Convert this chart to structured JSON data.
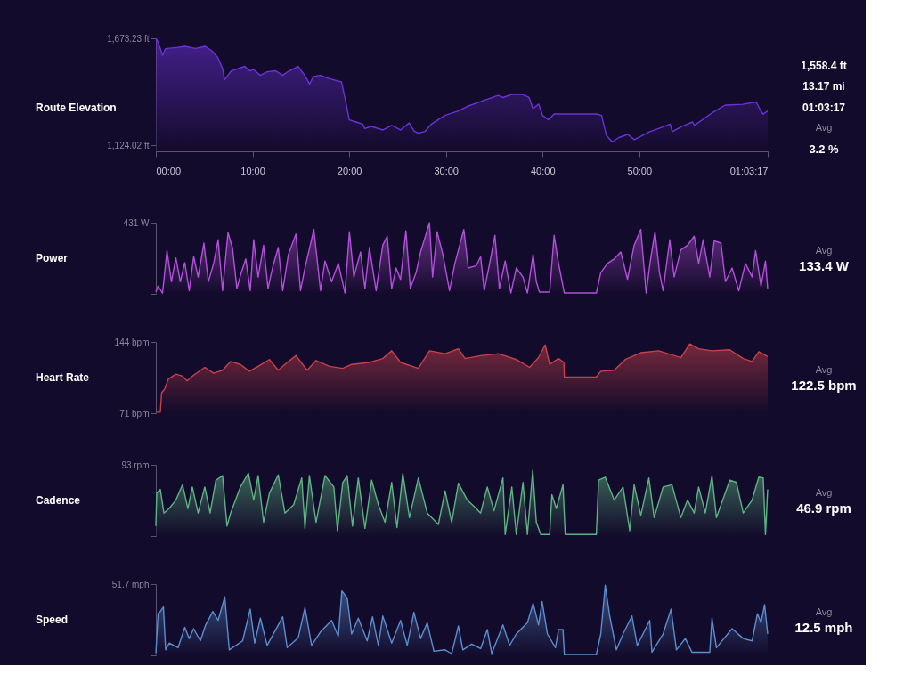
{
  "chart_data": [
    {
      "type": "area",
      "ylabel": "Route Elevation",
      "color": "#6c31d9",
      "xlim": [
        0,
        63.283
      ],
      "ylim": [
        1092,
        1673.23
      ],
      "xticks": [
        {
          "value": 0,
          "label": "00:00"
        },
        {
          "value": 10,
          "label": "10:00"
        },
        {
          "value": 20,
          "label": "20:00"
        },
        {
          "value": 30,
          "label": "30:00"
        },
        {
          "value": 40,
          "label": "40:00"
        },
        {
          "value": 50,
          "label": "50:00"
        },
        {
          "value": 63.283,
          "label": "01:03:17"
        }
      ],
      "yticks": [
        {
          "value": 1673.23,
          "label": "1,673.23 ft"
        },
        {
          "value": 1124.02,
          "label": "1,124.02 ft"
        }
      ],
      "x": [
        0,
        0.23,
        0.69,
        1.0,
        2.3,
        3.0,
        4.1,
        5.1,
        5.8,
        6.4,
        6.9,
        7.1,
        7.8,
        9.2,
        9.7,
        10.1,
        10.8,
        11.5,
        12.4,
        13.1,
        13.8,
        14.7,
        15.4,
        15.9,
        16.3,
        17.0,
        17.9,
        18.9,
        19.2,
        19.6,
        20.0,
        20.7,
        21.4,
        21.6,
        22.3,
        23.5,
        24.4,
        25.3,
        26.2,
        26.7,
        27.1,
        27.8,
        28.5,
        29.9,
        31.3,
        32.2,
        34.1,
        35.4,
        35.9,
        36.8,
        37.9,
        38.6,
        39.0,
        39.6,
        40.0,
        40.6,
        41.2,
        42.8,
        45.6,
        46.1,
        46.6,
        47.2,
        47.9,
        48.8,
        49.5,
        50.2,
        51.1,
        52.0,
        53.2,
        53.4,
        54.4,
        55.5,
        55.7,
        57.5,
        58.9,
        60.7,
        62.1,
        62.4,
        62.8,
        63.283
      ],
      "values": [
        1673,
        1655,
        1586,
        1620,
        1627,
        1632,
        1621,
        1632,
        1609,
        1575,
        1518,
        1460,
        1506,
        1529,
        1506,
        1513,
        1483,
        1501,
        1506,
        1483,
        1506,
        1529,
        1483,
        1438,
        1477,
        1483,
        1467,
        1453,
        1449,
        1357,
        1254,
        1243,
        1232,
        1209,
        1220,
        1202,
        1225,
        1202,
        1238,
        1197,
        1186,
        1193,
        1232,
        1277,
        1300,
        1323,
        1357,
        1380,
        1369,
        1385,
        1385,
        1369,
        1312,
        1335,
        1277,
        1254,
        1284,
        1284,
        1284,
        1277,
        1174,
        1140,
        1163,
        1179,
        1152,
        1170,
        1193,
        1209,
        1232,
        1193,
        1220,
        1243,
        1225,
        1289,
        1330,
        1334,
        1346,
        1316,
        1284,
        1300
      ],
      "annotations": [
        "1,558.4 ft",
        "13.17 mi",
        "01:03:17",
        "Avg",
        "3.2 %"
      ]
    },
    {
      "type": "area",
      "ylabel": "Power",
      "color": "#b44fdc",
      "xlim": [
        0,
        63.283
      ],
      "ylim": [
        0,
        431
      ],
      "tick_labels": "y",
      "yticks": [
        {
          "value": 431,
          "label": "431 W"
        },
        {
          "value": 0,
          "label": null
        }
      ],
      "x": [
        0,
        0.23,
        0.69,
        1.15,
        1.61,
        2.07,
        2.53,
        2.99,
        3.45,
        3.91,
        4.37,
        4.97,
        5.43,
        5.98,
        6.44,
        6.9,
        7.46,
        7.92,
        8.38,
        8.84,
        9.3,
        9.76,
        10.12,
        10.58,
        11.14,
        11.6,
        12.06,
        12.66,
        13.12,
        13.71,
        14.49,
        14.96,
        15.42,
        16.34,
        17.03,
        17.49,
        18.18,
        18.87,
        19.56,
        20.02,
        20.48,
        21.17,
        21.63,
        22.09,
        22.78,
        23.47,
        23.93,
        24.39,
        24.85,
        25.31,
        25.86,
        26.32,
        26.92,
        27.38,
        28.3,
        28.62,
        29.08,
        29.68,
        30.37,
        30.93,
        31.85,
        32.31,
        33.13,
        33.59,
        33.96,
        34.52,
        35.07,
        35.53,
        36.13,
        36.72,
        37.28,
        37.97,
        38.43,
        39.02,
        39.35,
        39.67,
        40.73,
        41.19,
        41.65,
        42.25,
        45.56,
        46.02,
        46.71,
        47.4,
        48.09,
        48.78,
        49.47,
        50.16,
        50.71,
        51.17,
        51.63,
        52.09,
        52.46,
        53.15,
        53.61,
        54.3,
        54.99,
        55.68,
        56.14,
        56.6,
        57.29,
        57.75,
        58.45,
        58.91,
        59.6,
        60.29,
        60.98,
        61.67,
        62.03,
        62.59,
        63.05,
        63.28
      ],
      "values": [
        11,
        47,
        5,
        261,
        74,
        217,
        74,
        189,
        19,
        225,
        102,
        307,
        74,
        184,
        327,
        19,
        371,
        280,
        33,
        129,
        211,
        19,
        327,
        102,
        294,
        33,
        156,
        280,
        19,
        239,
        362,
        19,
        156,
        390,
        19,
        198,
        74,
        184,
        5,
        376,
        102,
        253,
        33,
        280,
        19,
        294,
        349,
        33,
        156,
        88,
        382,
        33,
        129,
        253,
        431,
        102,
        376,
        239,
        19,
        184,
        390,
        156,
        170,
        225,
        19,
        184,
        354,
        33,
        198,
        5,
        156,
        102,
        5,
        239,
        74,
        11,
        11,
        354,
        184,
        5,
        5,
        129,
        184,
        211,
        253,
        88,
        294,
        390,
        5,
        211,
        376,
        129,
        19,
        327,
        102,
        266,
        294,
        349,
        184,
        327,
        102,
        321,
        307,
        74,
        156,
        19,
        184,
        102,
        261,
        47,
        198,
        33
      ],
      "annotations": [
        "Avg",
        "133.4 W"
      ]
    },
    {
      "type": "area",
      "ylabel": "Heart Rate",
      "color": "#c9404b",
      "xlim": [
        0,
        63.283
      ],
      "ylim": [
        71,
        144
      ],
      "tick_labels": "y",
      "yticks": [
        {
          "value": 144,
          "label": "144 bpm"
        },
        {
          "value": 71,
          "label": "71 bpm"
        }
      ],
      "x": [
        0,
        0.46,
        0.6,
        0.92,
        1.29,
        2.07,
        2.76,
        3.22,
        3.91,
        5.06,
        5.98,
        6.9,
        7.73,
        8.74,
        9.67,
        10.58,
        11.74,
        12.66,
        13.58,
        14.49,
        15.65,
        16.57,
        17.95,
        19.33,
        20.25,
        22.09,
        23.47,
        24.39,
        25.31,
        27.15,
        28.3,
        29.91,
        31.29,
        31.98,
        33.59,
        35.44,
        37.28,
        38.66,
        39.58,
        40.27,
        40.73,
        41.65,
        42.2,
        42.25,
        45.56,
        46.02,
        47.4,
        48.55,
        50.16,
        52.0,
        54.3,
        55.22,
        56.14,
        57.52,
        59.36,
        60.75,
        61.67,
        62.36,
        63.28
      ],
      "values": [
        72,
        72,
        92,
        96,
        106,
        111,
        109,
        104,
        110,
        118,
        112,
        115,
        124,
        121,
        114,
        119,
        126,
        115,
        123,
        130,
        115,
        125,
        119,
        117,
        121,
        123,
        127,
        135,
        123,
        117,
        135,
        132,
        137,
        127,
        130,
        132,
        126,
        118,
        128,
        141,
        121,
        127,
        123,
        108,
        108,
        114,
        115,
        126,
        133,
        135,
        128,
        142,
        137,
        135,
        136,
        127,
        124,
        134,
        129
      ],
      "annotations": [
        "Avg",
        "122.5 bpm"
      ]
    },
    {
      "type": "area",
      "ylabel": "Cadence",
      "color": "#5cb482",
      "xlim": [
        0,
        63.283
      ],
      "ylim": [
        0,
        93
      ],
      "tick_labels": "y",
      "yticks": [
        {
          "value": 93,
          "label": "93 rpm"
        },
        {
          "value": 0,
          "label": null
        }
      ],
      "x": [
        0,
        0.09,
        0.46,
        0.83,
        1.38,
        2.07,
        2.76,
        3.31,
        3.77,
        4.37,
        5.06,
        5.61,
        6.21,
        6.9,
        7.36,
        7.73,
        8.74,
        9.57,
        10.12,
        10.58,
        11.14,
        11.74,
        12.66,
        13.35,
        14.26,
        15.09,
        15.42,
        15.88,
        16.57,
        17.49,
        18.41,
        18.78,
        19.33,
        19.79,
        20.34,
        20.94,
        21.63,
        22.32,
        23.01,
        23.7,
        24.39,
        24.94,
        25.54,
        26.23,
        27.15,
        28.07,
        29.22,
        29.91,
        30.6,
        31.29,
        32.21,
        33.13,
        33.59,
        34.28,
        34.97,
        35.9,
        36.13,
        36.82,
        37.28,
        37.97,
        38.43,
        38.98,
        39.35,
        39.67,
        39.81,
        40.73,
        40.96,
        41.42,
        42.11,
        42.34,
        45.56,
        45.79,
        46.48,
        47.4,
        48.32,
        49.01,
        49.47,
        50.16,
        50.99,
        51.54,
        52.46,
        53.38,
        54.3,
        54.99,
        55.68,
        56.14,
        56.83,
        57.52,
        57.98,
        59.36,
        60.05,
        60.75,
        61.67,
        62.36,
        62.82,
        63.05,
        63.28
      ],
      "values": [
        13,
        56,
        61,
        30,
        36,
        47,
        67,
        36,
        64,
        30,
        64,
        30,
        73,
        79,
        13,
        30,
        64,
        82,
        47,
        79,
        18,
        56,
        80,
        30,
        41,
        76,
        10,
        79,
        18,
        79,
        64,
        7,
        70,
        79,
        13,
        76,
        10,
        73,
        41,
        18,
        70,
        11,
        82,
        24,
        76,
        30,
        15,
        59,
        18,
        69,
        47,
        36,
        30,
        64,
        33,
        76,
        2,
        64,
        2,
        70,
        2,
        86,
        18,
        7,
        2,
        2,
        54,
        36,
        67,
        2,
        2,
        73,
        77,
        47,
        64,
        7,
        67,
        27,
        76,
        24,
        64,
        67,
        24,
        47,
        30,
        64,
        30,
        79,
        24,
        73,
        70,
        30,
        47,
        77,
        76,
        2,
        61
      ],
      "annotations": [
        "Avg",
        "46.9 rpm"
      ]
    },
    {
      "type": "area",
      "ylabel": "Speed",
      "color": "#5b8ed0",
      "xlim": [
        0,
        63.283
      ],
      "ylim": [
        0,
        51.7
      ],
      "tick_labels": "y",
      "yticks": [
        {
          "value": 51.7,
          "label": "51.7 mph"
        },
        {
          "value": 0,
          "label": null
        }
      ],
      "x": [
        0,
        0.23,
        0.46,
        0.78,
        1.01,
        1.38,
        2.3,
        2.99,
        3.45,
        3.91,
        4.6,
        5.15,
        5.89,
        6.44,
        7.13,
        7.59,
        8.97,
        9.76,
        10.22,
        10.81,
        11.51,
        13.12,
        13.58,
        14.73,
        15.42,
        16.11,
        17.03,
        18.18,
        18.87,
        19.24,
        19.79,
        20.25,
        20.94,
        21.86,
        22.41,
        23.01,
        23.47,
        24.39,
        25.31,
        26.0,
        26.69,
        27.38,
        28.07,
        28.76,
        29.91,
        30.6,
        31.29,
        31.75,
        32.67,
        33.59,
        34.28,
        34.74,
        35.9,
        36.59,
        37.28,
        38.43,
        39.02,
        39.58,
        39.95,
        40.5,
        41.33,
        41.65,
        42.11,
        42.25,
        45.56,
        46.02,
        46.48,
        46.94,
        47.63,
        48.32,
        49.24,
        49.79,
        51.08,
        51.31,
        52.46,
        53.29,
        53.84,
        54.76,
        55.45,
        57.29,
        57.52,
        57.98,
        59.6,
        60.75,
        61.67,
        62.22,
        62.59,
        62.96,
        63.28
      ],
      "values": [
        1.6,
        30.3,
        31.9,
        35.2,
        4.0,
        8.9,
        5.6,
        20.4,
        12.2,
        19.4,
        10.5,
        22.1,
        31.9,
        25.4,
        42.5,
        4.0,
        10.5,
        33.6,
        8.9,
        27.0,
        7.2,
        28.0,
        5.6,
        12.8,
        34.6,
        7.2,
        17.1,
        25.4,
        13.8,
        46.8,
        41.8,
        15.5,
        27.0,
        10.5,
        28.0,
        7.2,
        28.6,
        8.9,
        25.4,
        7.2,
        31.3,
        12.2,
        23.7,
        3.0,
        4.0,
        1.3,
        21.4,
        4.0,
        8.2,
        4.9,
        18.8,
        1.3,
        22.1,
        7.2,
        15.5,
        23.7,
        37.9,
        22.1,
        39.2,
        15.5,
        5.6,
        18.8,
        18.8,
        0.7,
        0.7,
        15.5,
        51.0,
        28.6,
        4.0,
        15.5,
        28.6,
        7.2,
        25.4,
        2.3,
        15.5,
        33.6,
        4.0,
        12.2,
        2.3,
        2.3,
        27.0,
        5.6,
        19.4,
        12.2,
        10.5,
        30.3,
        23.7,
        36.9,
        15.5
      ],
      "annotations": [
        "Avg",
        "12.5 mph"
      ]
    }
  ]
}
